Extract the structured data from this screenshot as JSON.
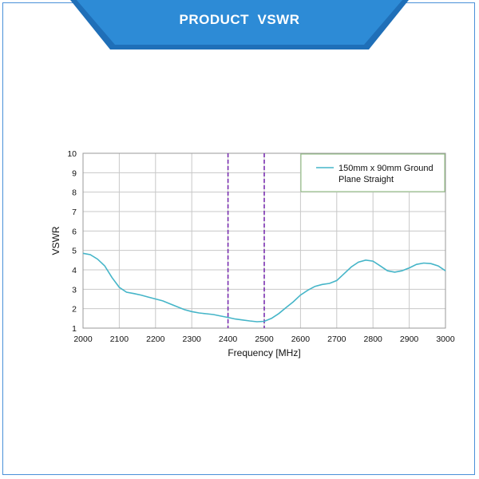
{
  "header": {
    "title": "PRODUCT  VSWR"
  },
  "colors": {
    "banner": "#2d8bd6",
    "banner_edge": "#1f6fb8",
    "frame": "#4a90d9",
    "series": "#45b5c8",
    "marker": "#7a2fb0",
    "legend_border": "#8fbf7f",
    "grid": "#c8c8c8"
  },
  "chart_data": {
    "type": "line",
    "xlabel": "Frequency [MHz]",
    "ylabel": "VSWR",
    "xlim": [
      2000,
      3000
    ],
    "ylim": [
      1,
      10
    ],
    "xticks": [
      "2000",
      "2100",
      "2200",
      "2300",
      "2400",
      "2500",
      "2600",
      "2700",
      "2800",
      "2900",
      "3000"
    ],
    "yticks": [
      "1",
      "2",
      "3",
      "4",
      "5",
      "6",
      "7",
      "8",
      "9",
      "10"
    ],
    "grid": true,
    "legend_position": "top-right",
    "markers": [
      2400,
      2500
    ],
    "series": [
      {
        "name": "150mm x 90mm Ground Plane Straight",
        "x": [
          2000,
          2020,
          2040,
          2060,
          2080,
          2100,
          2120,
          2140,
          2160,
          2180,
          2200,
          2220,
          2240,
          2260,
          2280,
          2300,
          2320,
          2340,
          2360,
          2380,
          2400,
          2420,
          2440,
          2460,
          2480,
          2500,
          2520,
          2540,
          2560,
          2580,
          2600,
          2620,
          2640,
          2660,
          2680,
          2700,
          2720,
          2740,
          2760,
          2780,
          2800,
          2820,
          2840,
          2860,
          2880,
          2900,
          2920,
          2940,
          2960,
          2980,
          3000
        ],
        "y": [
          4.85,
          4.78,
          4.55,
          4.2,
          3.6,
          3.1,
          2.85,
          2.78,
          2.7,
          2.6,
          2.5,
          2.4,
          2.25,
          2.1,
          1.95,
          1.85,
          1.78,
          1.74,
          1.7,
          1.62,
          1.55,
          1.47,
          1.42,
          1.37,
          1.33,
          1.35,
          1.5,
          1.75,
          2.05,
          2.35,
          2.7,
          2.95,
          3.15,
          3.25,
          3.3,
          3.45,
          3.8,
          4.15,
          4.4,
          4.5,
          4.45,
          4.2,
          3.95,
          3.88,
          3.95,
          4.1,
          4.28,
          4.35,
          4.32,
          4.2,
          3.95
        ]
      }
    ]
  }
}
